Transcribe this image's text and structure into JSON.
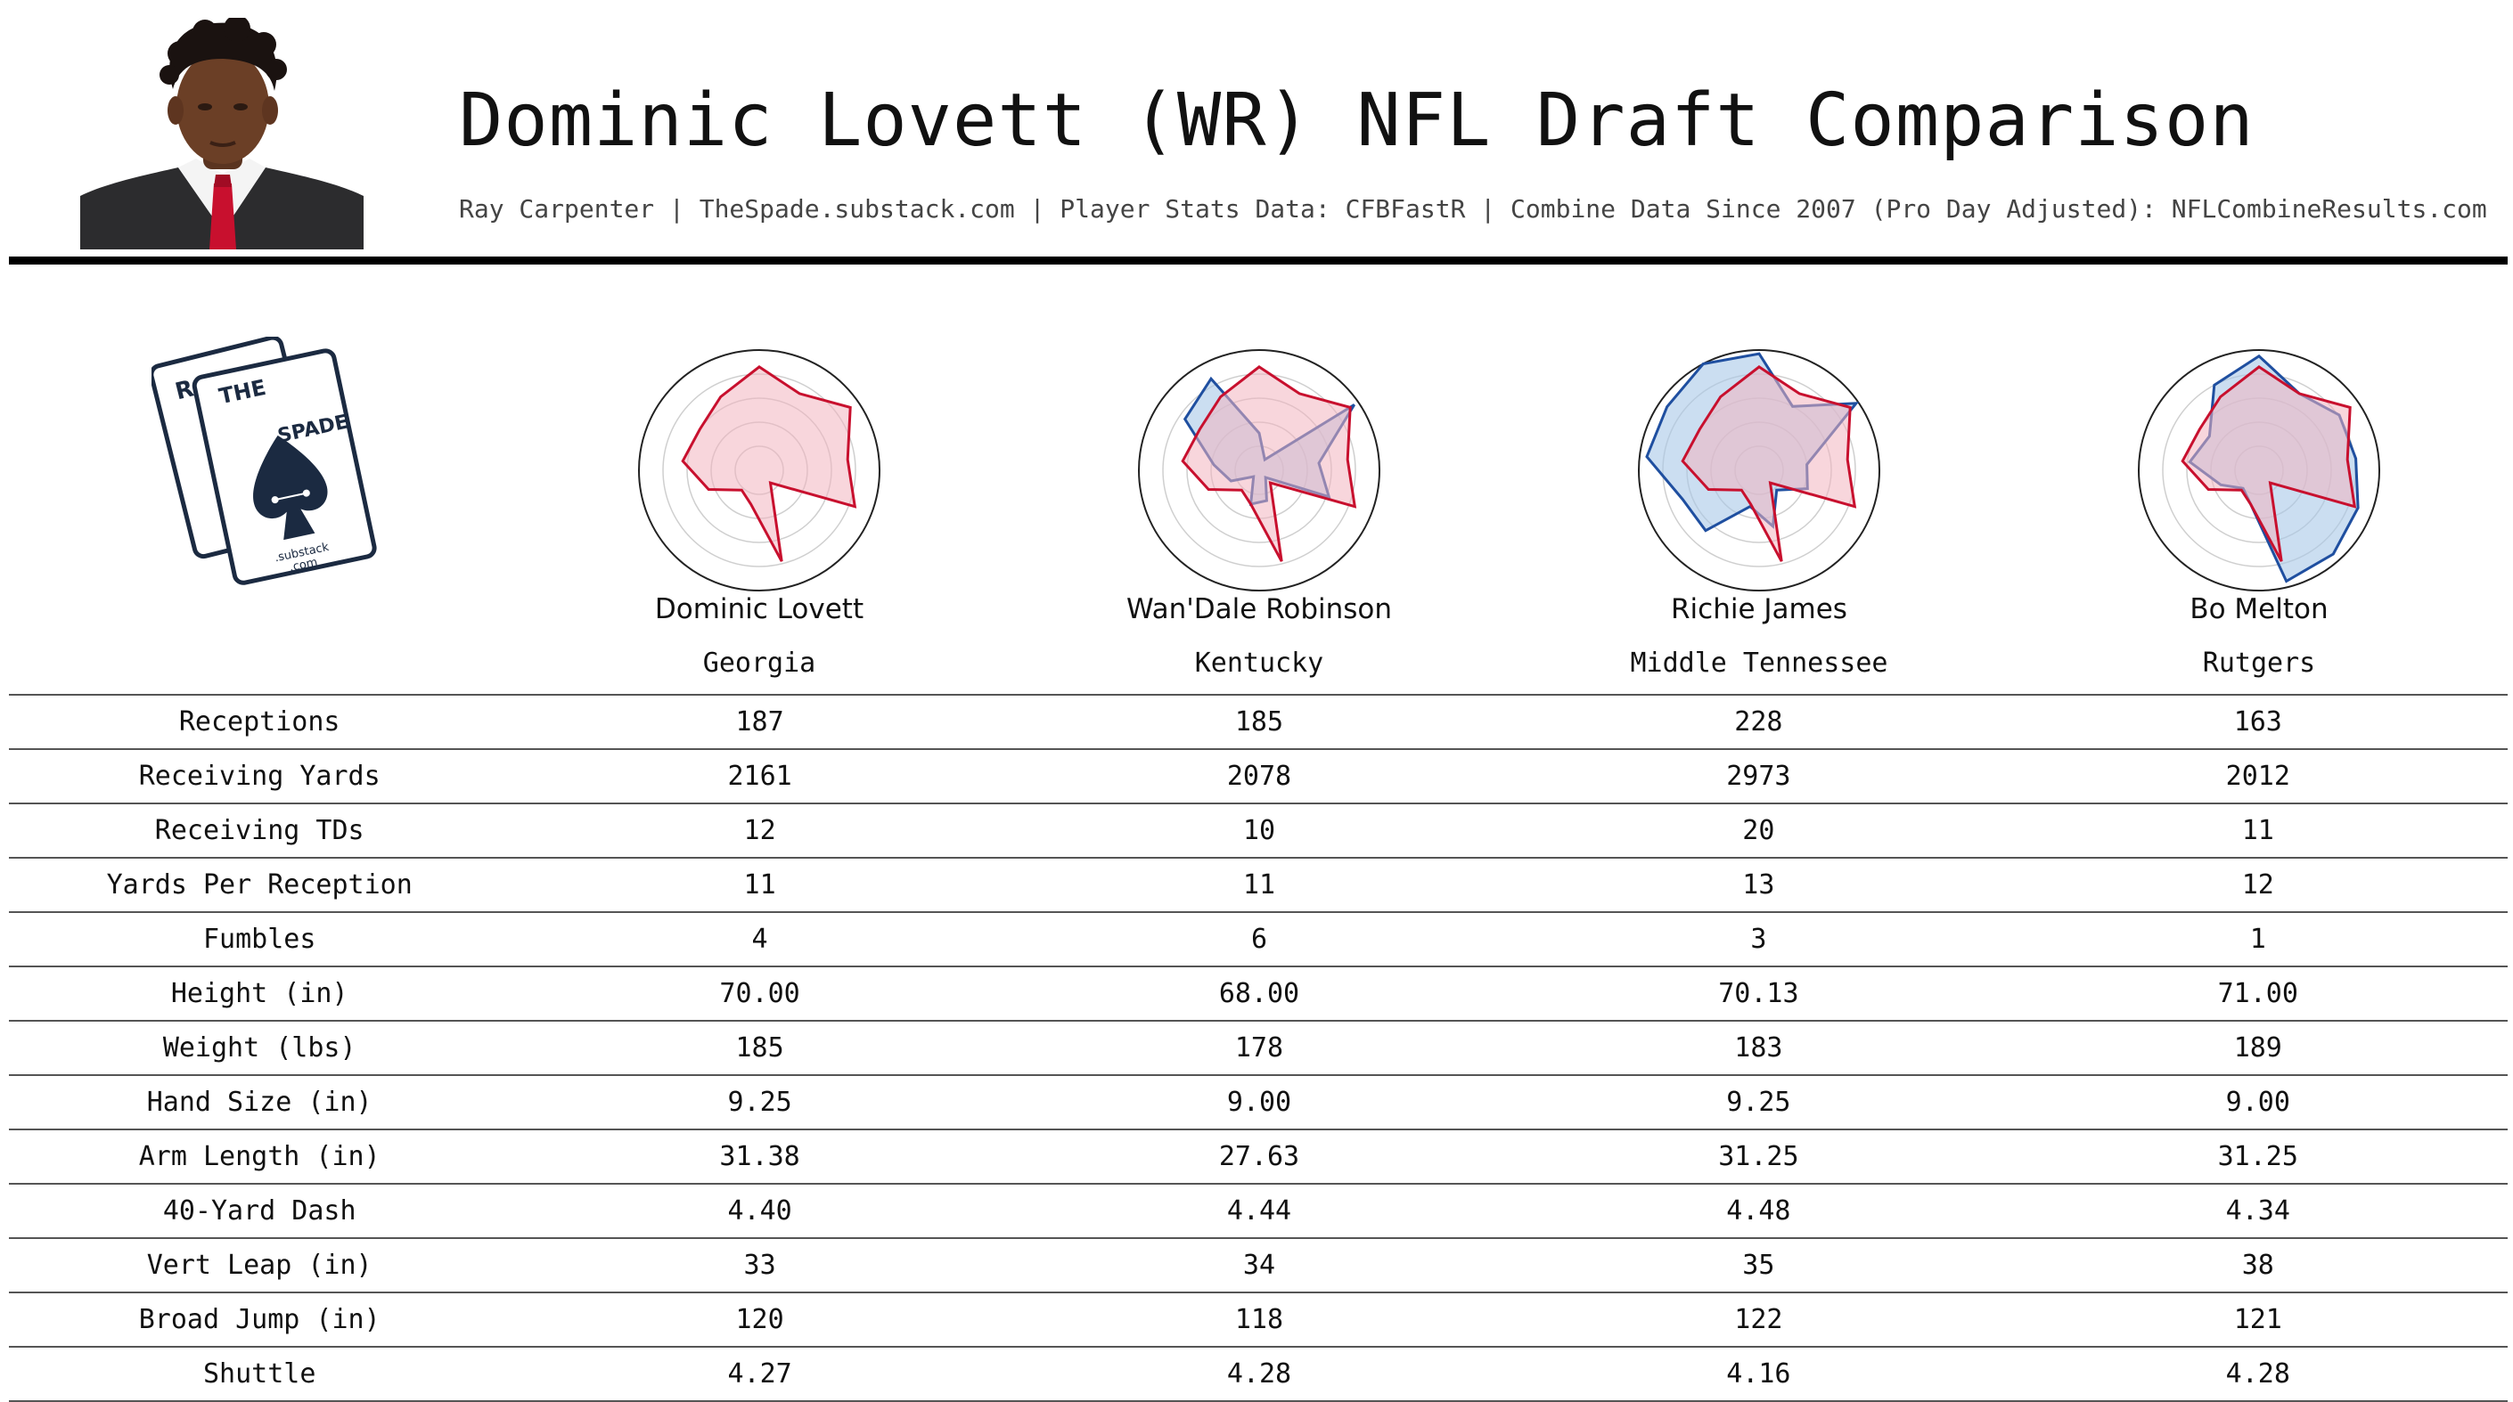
{
  "header": {
    "title": "Dominic Lovett (WR) NFL Draft Comparison",
    "subtitle": "Ray Carpenter | TheSpade.substack.com | Player Stats Data: CFBFastR | Combine Data Since 2007 (Pro Day Adjusted): NFLCombineResults.com"
  },
  "logo": {
    "letters_left": "RC",
    "letters_mid": "THE",
    "letters_right": "SPADE",
    "substack": ".substack",
    "com": ".com"
  },
  "colors": {
    "target": "#c8102e",
    "target_fill": "#f2b4c0",
    "comparison": "#1f4fa0",
    "comparison_fill": "#a9c8e8",
    "navy": "#1b2a41"
  },
  "players": [
    {
      "name": "Dominic Lovett",
      "school": "Georgia"
    },
    {
      "name": "Wan'Dale Robinson",
      "school": "Kentucky"
    },
    {
      "name": "Richie James",
      "school": "Middle Tennessee"
    },
    {
      "name": "Bo Melton",
      "school": "Rutgers"
    }
  ],
  "table": {
    "rows": [
      {
        "label": "Receptions",
        "values": [
          "187",
          "185",
          "228",
          "163"
        ]
      },
      {
        "label": "Receiving Yards",
        "values": [
          "2161",
          "2078",
          "2973",
          "2012"
        ]
      },
      {
        "label": "Receiving TDs",
        "values": [
          "12",
          "10",
          "20",
          "11"
        ]
      },
      {
        "label": "Yards Per Reception",
        "values": [
          "11",
          "11",
          "13",
          "12"
        ]
      },
      {
        "label": "Fumbles",
        "values": [
          "4",
          "6",
          "3",
          "1"
        ]
      },
      {
        "label": "Height (in)",
        "values": [
          "70.00",
          "68.00",
          "70.13",
          "71.00"
        ]
      },
      {
        "label": "Weight (lbs)",
        "values": [
          "185",
          "178",
          "183",
          "189"
        ]
      },
      {
        "label": "Hand Size (in)",
        "values": [
          "9.25",
          "9.00",
          "9.25",
          "9.00"
        ]
      },
      {
        "label": "Arm Length (in)",
        "values": [
          "31.38",
          "27.63",
          "31.25",
          "31.25"
        ]
      },
      {
        "label": "40-Yard Dash",
        "values": [
          "4.40",
          "4.44",
          "4.48",
          "4.34"
        ]
      },
      {
        "label": "Vert Leap (in)",
        "values": [
          "33",
          "34",
          "35",
          "38"
        ]
      },
      {
        "label": "Broad Jump (in)",
        "values": [
          "120",
          "118",
          "122",
          "121"
        ]
      },
      {
        "label": "Shuttle",
        "values": [
          "4.27",
          "4.28",
          "4.16",
          "4.28"
        ]
      }
    ]
  },
  "chart_data": [
    {
      "type": "radar",
      "rmax": 1,
      "grid": true,
      "series": [
        {
          "color": "target",
          "values": [
            0.86,
            0.72,
            0.92,
            0.74,
            0.85,
            0.14,
            0.78,
            0.29,
            0.22,
            0.45,
            0.64,
            0.6,
            0.69
          ]
        }
      ]
    },
    {
      "type": "radar",
      "rmax": 1,
      "grid": true,
      "series": [
        {
          "color": "comparison",
          "values": [
            0.31,
            0.1,
            0.96,
            0.5,
            0.62,
            0.08,
            0.26,
            0.29,
            0.07,
            0.25,
            0.38,
            0.75,
            0.86
          ]
        },
        {
          "color": "target",
          "values": [
            0.86,
            0.72,
            0.92,
            0.74,
            0.85,
            0.14,
            0.78,
            0.29,
            0.22,
            0.45,
            0.64,
            0.6,
            0.69
          ]
        }
      ]
    },
    {
      "type": "radar",
      "rmax": 1,
      "grid": true,
      "series": [
        {
          "color": "comparison",
          "values": [
            0.97,
            0.6,
            0.98,
            0.4,
            0.43,
            0.22,
            0.48,
            0.31,
            0.67,
            0.68,
            0.94,
            0.93,
            1.0
          ]
        },
        {
          "color": "target",
          "values": [
            0.86,
            0.72,
            0.92,
            0.74,
            0.85,
            0.14,
            0.78,
            0.29,
            0.22,
            0.45,
            0.64,
            0.6,
            0.69
          ]
        }
      ]
    },
    {
      "type": "radar",
      "rmax": 1,
      "grid": true,
      "series": [
        {
          "color": "comparison",
          "values": [
            0.95,
            0.72,
            0.81,
            0.81,
            0.88,
            0.93,
            0.95,
            0.29,
            0.2,
            0.34,
            0.58,
            0.5,
            0.8
          ]
        },
        {
          "color": "target",
          "values": [
            0.86,
            0.72,
            0.92,
            0.74,
            0.85,
            0.14,
            0.78,
            0.29,
            0.22,
            0.45,
            0.64,
            0.6,
            0.69
          ]
        }
      ]
    }
  ]
}
